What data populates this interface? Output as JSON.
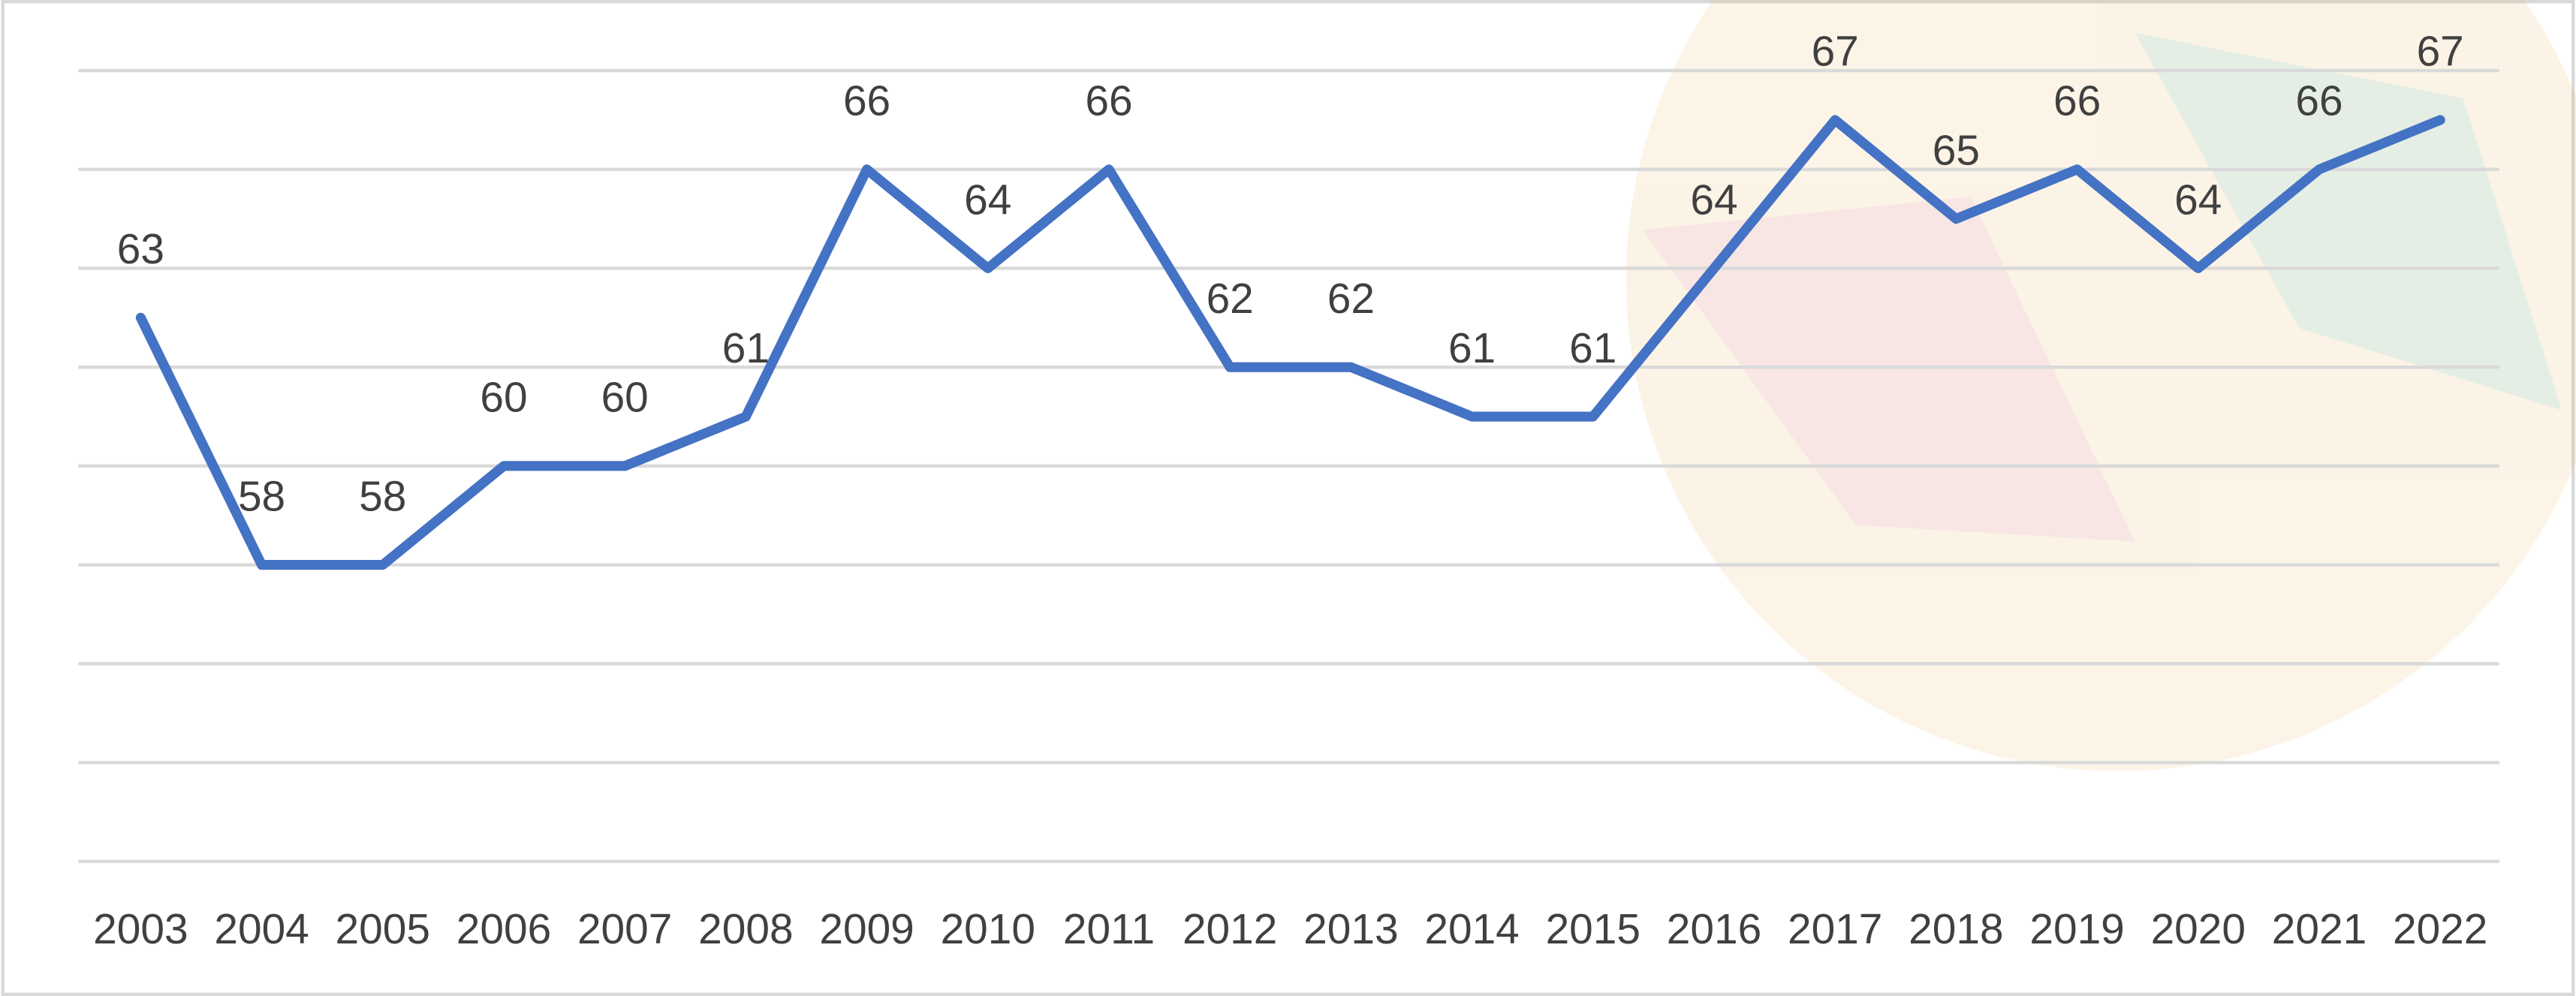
{
  "chart_data": {
    "type": "line",
    "categories": [
      "2003",
      "2004",
      "2005",
      "2006",
      "2007",
      "2008",
      "2009",
      "2010",
      "2011",
      "2012",
      "2013",
      "2014",
      "2015",
      "2016",
      "2017",
      "2018",
      "2019",
      "2020",
      "2021",
      "2022"
    ],
    "series": [
      {
        "color": "#4472c4",
        "values": [
          63,
          58,
          58,
          60,
          60,
          61,
          66,
          64,
          66,
          62,
          62,
          61,
          61,
          64,
          67,
          65,
          66,
          64,
          66,
          67
        ]
      }
    ],
    "ylim": [
      52,
      68
    ],
    "yticks": [
      52,
      54,
      56,
      58,
      60,
      62,
      64,
      66,
      68
    ],
    "grid": true
  }
}
